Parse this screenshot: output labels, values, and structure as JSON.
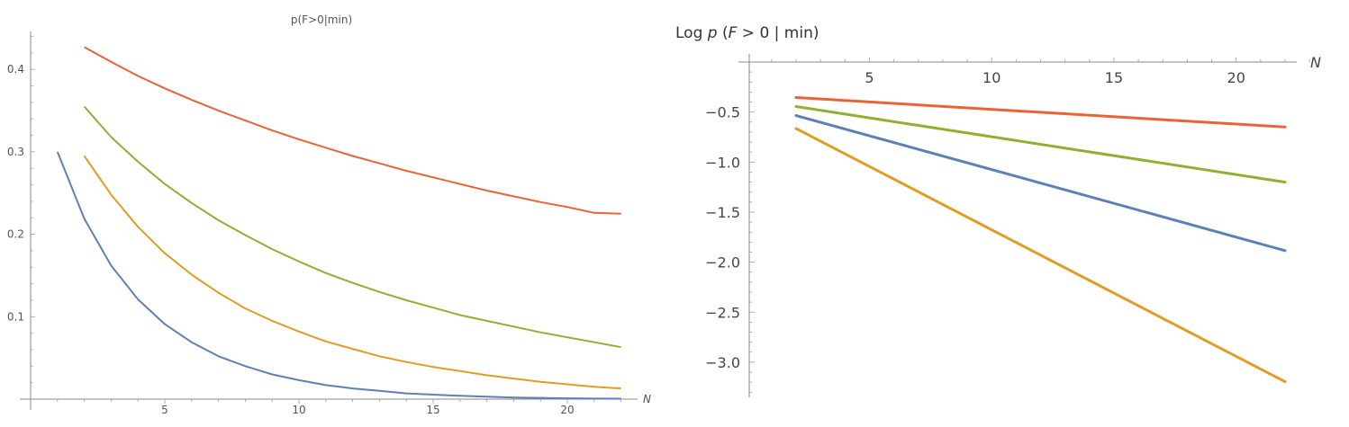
{
  "chart_data": [
    {
      "type": "line",
      "title": "p(F>0|min)",
      "xlabel": "N",
      "ylabel": "",
      "xlim": [
        0,
        22.3
      ],
      "ylim": [
        0,
        0.45
      ],
      "xticks": [
        "5",
        "10",
        "15",
        "20"
      ],
      "yticks": [
        "0.1",
        "0.2",
        "0.3",
        "0.4"
      ],
      "grid": false,
      "colors": [
        "#5E81B5",
        "#E19C24",
        "#8FB032",
        "#EB6235"
      ],
      "series": [
        {
          "x": [
            1,
            2,
            3,
            4,
            5,
            6,
            7,
            8,
            9,
            10,
            11,
            12,
            13,
            14,
            15,
            16,
            17,
            18,
            19,
            20,
            21,
            22
          ],
          "values": [
            0.3,
            0.219,
            0.162,
            0.121,
            0.091,
            0.069,
            0.052,
            0.04,
            0.03,
            0.023,
            0.017,
            0.013,
            0.01,
            0.007,
            0.0055,
            0.004,
            0.003,
            0.002,
            0.0015,
            0.001,
            0.0007,
            0.0005
          ]
        },
        {
          "x": [
            2,
            3,
            4,
            5,
            6,
            7,
            8,
            9,
            10,
            11,
            12,
            13,
            14,
            15,
            16,
            17,
            18,
            19,
            20,
            21,
            22
          ],
          "values": [
            0.295,
            0.248,
            0.209,
            0.177,
            0.151,
            0.129,
            0.11,
            0.095,
            0.082,
            0.07,
            0.061,
            0.052,
            0.045,
            0.039,
            0.034,
            0.029,
            0.025,
            0.021,
            0.018,
            0.015,
            0.013
          ]
        },
        {
          "x": [
            2,
            3,
            4,
            5,
            6,
            7,
            8,
            9,
            10,
            11,
            12,
            13,
            14,
            15,
            16,
            17,
            18,
            19,
            20,
            21,
            22
          ],
          "values": [
            0.355,
            0.318,
            0.288,
            0.261,
            0.238,
            0.217,
            0.199,
            0.182,
            0.167,
            0.153,
            0.141,
            0.13,
            0.12,
            0.111,
            0.102,
            0.095,
            0.088,
            0.081,
            0.075,
            0.069,
            0.063
          ]
        },
        {
          "x": [
            2,
            3,
            4,
            5,
            6,
            7,
            8,
            9,
            10,
            11,
            12,
            13,
            14,
            15,
            16,
            17,
            18,
            19,
            20,
            21,
            22
          ],
          "values": [
            0.427,
            0.409,
            0.392,
            0.377,
            0.363,
            0.35,
            0.338,
            0.326,
            0.315,
            0.305,
            0.295,
            0.286,
            0.277,
            0.269,
            0.261,
            0.253,
            0.246,
            0.239,
            0.233,
            0.226,
            0.225
          ]
        }
      ]
    },
    {
      "type": "line",
      "title": "Log p (F > 0 | min)",
      "title_parts": [
        "Log ",
        "p",
        " (",
        "F",
        " > 0 | min)"
      ],
      "xlabel": "N",
      "ylabel": "",
      "xlim": [
        2,
        22
      ],
      "ylim": [
        -3.3,
        0
      ],
      "xticks": [
        "5",
        "10",
        "15",
        "20"
      ],
      "yticks": [
        "-0.5",
        "-1.0",
        "-1.5",
        "-2.0",
        "-2.5",
        "-3.0"
      ],
      "ytick_labels": [
        "−0.5",
        "−1.0",
        "−1.5",
        "−2.0",
        "−2.5",
        "−3.0"
      ],
      "grid": false,
      "colors": [
        "#5E81B5",
        "#E19C24",
        "#8FB032",
        "#EB6235"
      ],
      "series": [
        {
          "x": [
            2,
            22
          ],
          "values": [
            -0.535,
            -1.885
          ]
        },
        {
          "x": [
            2,
            22
          ],
          "values": [
            -0.665,
            -3.195
          ]
        },
        {
          "x": [
            2,
            22
          ],
          "values": [
            -0.445,
            -1.2
          ]
        },
        {
          "x": [
            2,
            22
          ],
          "values": [
            -0.355,
            -0.65
          ]
        }
      ]
    }
  ]
}
